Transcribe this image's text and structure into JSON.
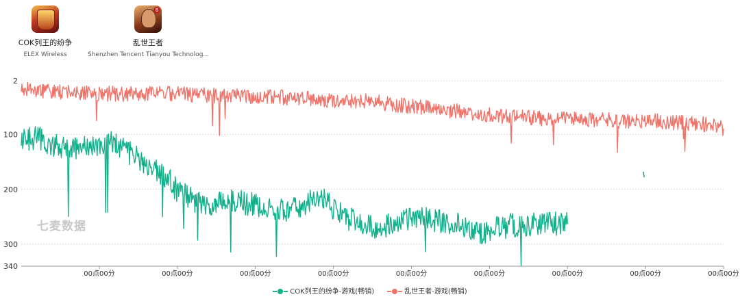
{
  "apps": [
    {
      "name": "COK列王的纷争",
      "developer": "ELEX Wireless",
      "icon": "cok-game-icon"
    },
    {
      "name": "乱世王者",
      "developer": "Shenzhen Tencent Tianyou Technolog...",
      "icon": "lswz-game-icon"
    }
  ],
  "watermark": "七麦数据",
  "colors": {
    "cok": "#13b08c",
    "lswz": "#f0736a",
    "grid": "#d9d9d9",
    "axis": "#999999"
  },
  "chart_data": {
    "type": "line",
    "title": "",
    "xlabel": "",
    "ylabel": "",
    "y_inverted": true,
    "ylim": [
      2,
      340
    ],
    "y_ticks": [
      2,
      100,
      200,
      300,
      340
    ],
    "x_tick_labels": [
      "00点00分",
      "00点00分",
      "00点00分",
      "00点00分",
      "00点00分",
      "00点00分",
      "00点00分",
      "00点00分",
      "00点00分"
    ],
    "legend_position": "bottom-center",
    "grid": true,
    "n_points": 1000,
    "series": [
      {
        "name": "COK列王的纷争-游戏(畅销)",
        "color": "#13b08c",
        "anchor_index": [
          0,
          20,
          50,
          70,
          100,
          115,
          130,
          160,
          210,
          220,
          260,
          300,
          380,
          400,
          420,
          440,
          460,
          480,
          500,
          540,
          560,
          580,
          600,
          620,
          640,
          660,
          680,
          700,
          740,
          760,
          778
        ],
        "anchor_rank": [
          110,
          105,
          120,
          128,
          115,
          128,
          110,
          140,
          180,
          200,
          230,
          220,
          240,
          230,
          210,
          230,
          250,
          260,
          270,
          260,
          250,
          255,
          260,
          262,
          270,
          280,
          270,
          265,
          262,
          262,
          262
        ],
        "noise": 22,
        "extra_points": [
          {
            "index": 885,
            "rank": 168
          },
          {
            "index": 886,
            "rank": 178
          }
        ]
      },
      {
        "name": "乱世王者-游戏(畅销)",
        "color": "#f0736a",
        "anchor_index": [
          0,
          50,
          100,
          150,
          200,
          250,
          300,
          350,
          400,
          450,
          500,
          550,
          600,
          650,
          700,
          750,
          800,
          850,
          900,
          950,
          980,
          999
        ],
        "anchor_rank": [
          18,
          22,
          25,
          26,
          24,
          28,
          30,
          30,
          35,
          38,
          40,
          48,
          55,
          62,
          68,
          72,
          72,
          75,
          75,
          80,
          82,
          90
        ],
        "noise": 14
      }
    ]
  }
}
